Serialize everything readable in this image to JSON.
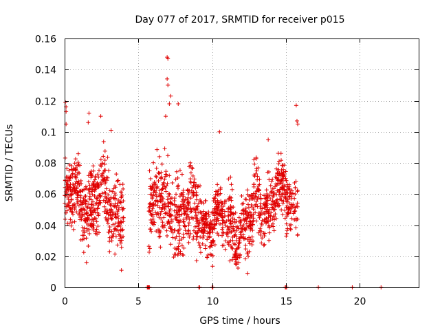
{
  "chart_data": {
    "type": "scatter",
    "title": "Day 077 of 2017, SRMTID for receiver p015",
    "xlabel": "GPS time / hours",
    "ylabel": "SRMTID / TECUs",
    "xlim": [
      0,
      24
    ],
    "ylim": [
      0,
      0.16
    ],
    "x_ticks": [
      0,
      5,
      10,
      15,
      20
    ],
    "x_tick_labels": [
      "0",
      "5",
      "10",
      "15",
      "20"
    ],
    "y_ticks": [
      0,
      0.02,
      0.04,
      0.06,
      0.08,
      0.1,
      0.12,
      0.14,
      0.16
    ],
    "y_tick_labels": [
      "0",
      "0.02",
      "0.04",
      "0.06",
      "0.08",
      "0.1",
      "0.12",
      "0.14",
      "0.16"
    ],
    "grid": true,
    "marker": "+",
    "color": "#e00000",
    "series": [
      {
        "name": "SRMTID",
        "segments": [
          {
            "x_start": 0.0,
            "x_end": 4.0,
            "count": 520,
            "base": 0.058,
            "spread": 0.02,
            "trend": -0.006
          },
          {
            "x_start": 5.7,
            "x_end": 9.3,
            "count": 420,
            "base": 0.055,
            "spread": 0.022,
            "trend": -0.01
          },
          {
            "x_start": 9.3,
            "x_end": 12.8,
            "count": 420,
            "base": 0.045,
            "spread": 0.017,
            "trend": -0.008
          },
          {
            "x_start": 12.8,
            "x_end": 15.8,
            "count": 340,
            "base": 0.055,
            "spread": 0.017,
            "trend": 0.004
          }
        ],
        "outliers": [
          {
            "x": 0.05,
            "y": 0.119
          },
          {
            "x": 0.1,
            "y": 0.116
          },
          {
            "x": 0.1,
            "y": 0.113
          },
          {
            "x": 0.1,
            "y": 0.105
          },
          {
            "x": 1.65,
            "y": 0.112
          },
          {
            "x": 1.6,
            "y": 0.106
          },
          {
            "x": 2.45,
            "y": 0.11
          },
          {
            "x": 3.15,
            "y": 0.101
          },
          {
            "x": 6.95,
            "y": 0.148
          },
          {
            "x": 7.0,
            "y": 0.147
          },
          {
            "x": 6.95,
            "y": 0.134
          },
          {
            "x": 7.0,
            "y": 0.13
          },
          {
            "x": 7.2,
            "y": 0.123
          },
          {
            "x": 7.1,
            "y": 0.118
          },
          {
            "x": 7.7,
            "y": 0.118
          },
          {
            "x": 6.85,
            "y": 0.11
          },
          {
            "x": 10.5,
            "y": 0.1
          },
          {
            "x": 13.8,
            "y": 0.095
          },
          {
            "x": 15.7,
            "y": 0.117
          },
          {
            "x": 15.75,
            "y": 0.107
          },
          {
            "x": 15.8,
            "y": 0.105
          },
          {
            "x": 3.85,
            "y": 0.011
          },
          {
            "x": 12.4,
            "y": 0.009
          },
          {
            "x": 11.2,
            "y": 0.017
          }
        ],
        "zero_points": [
          5.6,
          5.62,
          5.65,
          5.68,
          5.7,
          5.72,
          5.75,
          9.1,
          9.15,
          10.0,
          10.05,
          14.95,
          15.0,
          15.05,
          17.2,
          19.5,
          21.45
        ]
      }
    ]
  }
}
